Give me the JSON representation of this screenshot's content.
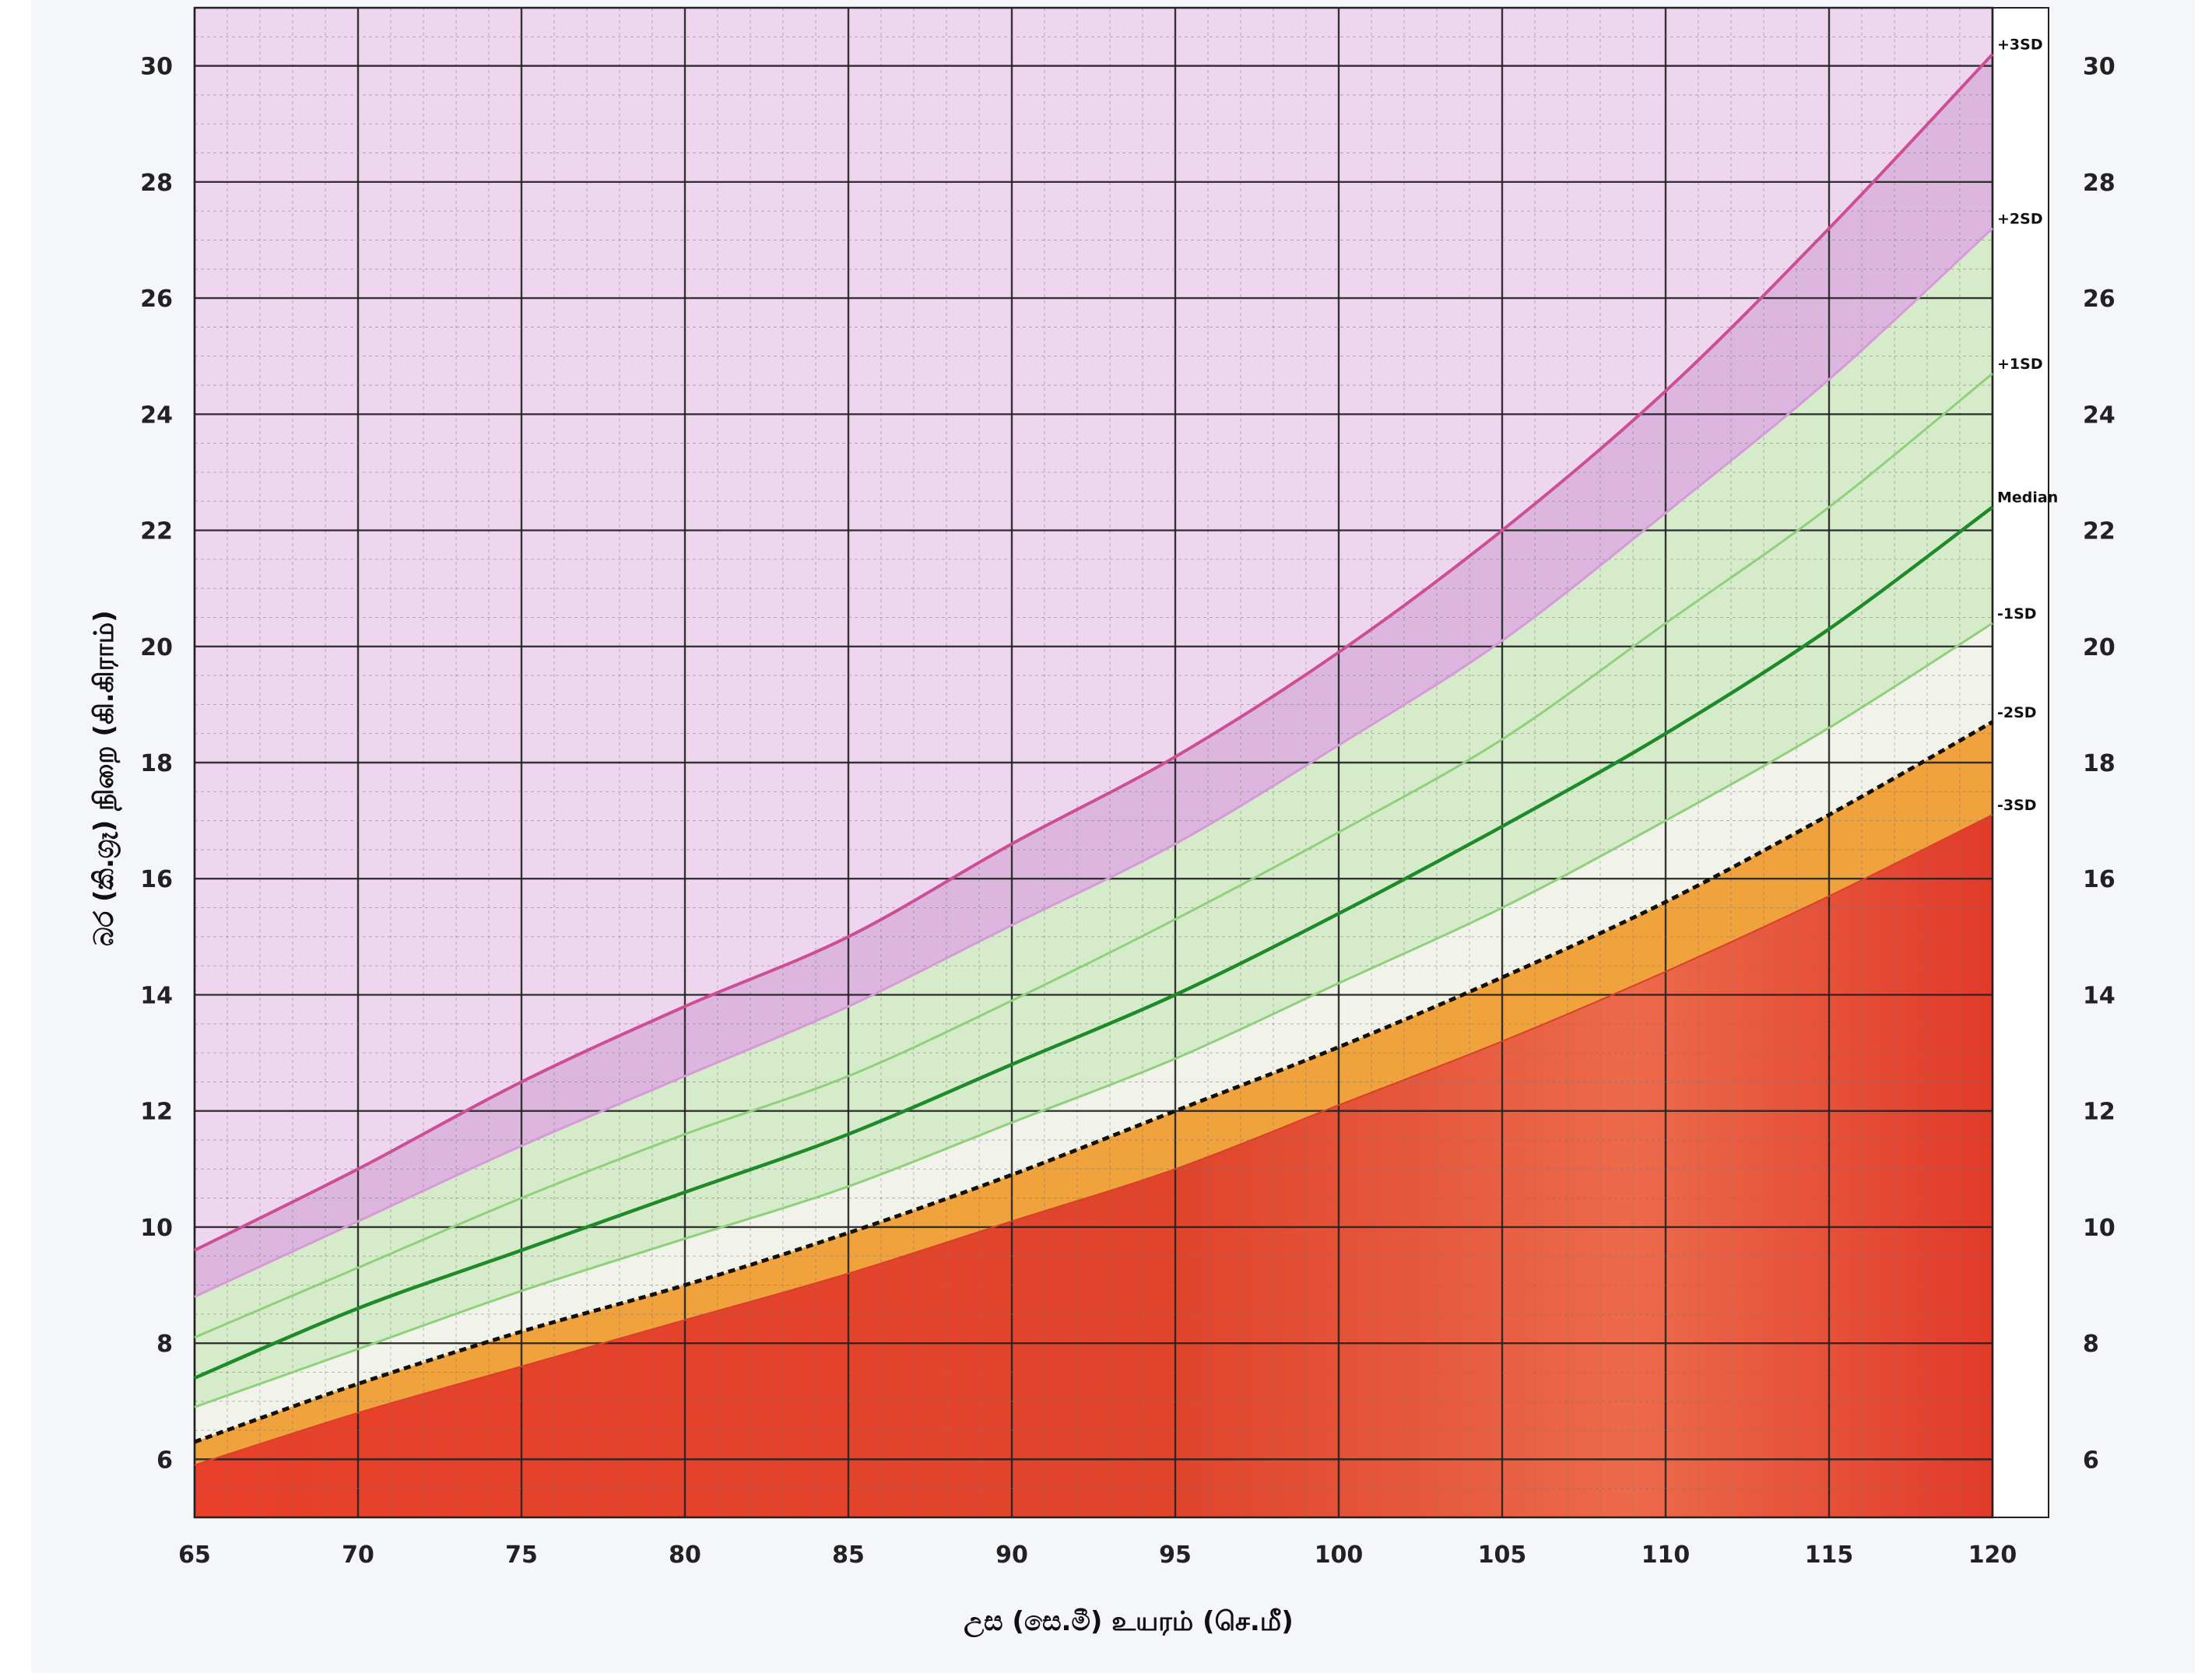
{
  "chart_data": {
    "type": "area",
    "title": "",
    "xlabel": "උස (සෙ.මී)  உயரம் (செ.மீ)",
    "ylabel": "බර (කි.ග්‍රෑ)  நிறை (கி.கிராம்)",
    "xlim": [
      65,
      120
    ],
    "ylim": [
      5,
      31
    ],
    "grid": true,
    "x_ticks": [
      65,
      70,
      75,
      80,
      85,
      90,
      95,
      100,
      105,
      110,
      115,
      120
    ],
    "y_ticks": [
      6,
      8,
      10,
      12,
      14,
      16,
      18,
      20,
      22,
      24,
      26,
      28,
      30
    ],
    "x": [
      65,
      70,
      75,
      80,
      85,
      90,
      95,
      100,
      105,
      110,
      115,
      120
    ],
    "series": [
      {
        "name": "+3SD",
        "values": [
          9.6,
          11.0,
          12.5,
          13.8,
          15.0,
          16.6,
          18.1,
          19.9,
          22.0,
          24.4,
          27.2,
          30.2
        ]
      },
      {
        "name": "+2SD",
        "values": [
          8.8,
          10.1,
          11.4,
          12.6,
          13.8,
          15.2,
          16.6,
          18.3,
          20.1,
          22.3,
          24.6,
          27.2
        ]
      },
      {
        "name": "+1SD",
        "values": [
          8.1,
          9.3,
          10.5,
          11.6,
          12.6,
          13.9,
          15.3,
          16.8,
          18.4,
          20.4,
          22.4,
          24.7
        ]
      },
      {
        "name": "Median",
        "values": [
          7.4,
          8.6,
          9.6,
          10.6,
          11.6,
          12.8,
          14.0,
          15.4,
          16.9,
          18.5,
          20.3,
          22.4
        ]
      },
      {
        "name": "-1SD",
        "values": [
          6.9,
          7.9,
          8.9,
          9.8,
          10.7,
          11.8,
          12.9,
          14.2,
          15.5,
          17.0,
          18.6,
          20.4
        ]
      },
      {
        "name": "-2SD",
        "values": [
          6.3,
          7.3,
          8.2,
          9.0,
          9.9,
          10.9,
          12.0,
          13.1,
          14.3,
          15.6,
          17.1,
          18.7
        ]
      },
      {
        "name": "-3SD",
        "values": [
          5.9,
          6.8,
          7.6,
          8.4,
          9.2,
          10.1,
          11.0,
          12.1,
          13.2,
          14.4,
          15.7,
          17.1
        ]
      }
    ],
    "colors": {
      "above_3sd": "#efd6ef",
      "band_2_3": "#dcb6de",
      "band_green": "#d6ebca",
      "band_white": "#f1f3ea",
      "band_orange": "#f0a23c",
      "below_3sd": "#e14a2e",
      "line_3sd": "#cc4f96",
      "line_2sd": "#d69ad8",
      "line_1sd": "#8fd07b",
      "line_median": "#1e8a2a",
      "line_2sd_neg": "#111111"
    }
  }
}
